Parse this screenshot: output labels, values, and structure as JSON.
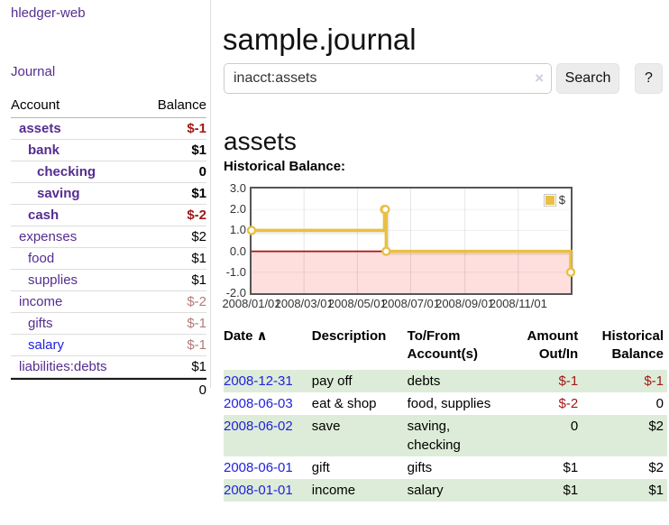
{
  "app": {
    "brand": "hledger-web",
    "nav_journal": "Journal"
  },
  "sidebar": {
    "headers": {
      "account": "Account",
      "balance": "Balance"
    },
    "accounts": [
      {
        "name": "assets",
        "balance": "$-1",
        "class": "neg"
      },
      {
        "name": "bank",
        "balance": "$1",
        "class": ""
      },
      {
        "name": "checking",
        "balance": "0",
        "class": ""
      },
      {
        "name": "saving",
        "balance": "$1",
        "class": ""
      },
      {
        "name": "cash",
        "balance": "$-2",
        "class": "neg"
      },
      {
        "name": "expenses",
        "balance": "$2",
        "class": ""
      },
      {
        "name": "food",
        "balance": "$1",
        "class": ""
      },
      {
        "name": "supplies",
        "balance": "$1",
        "class": ""
      },
      {
        "name": "income",
        "balance": "$-2",
        "class": "neg-muted"
      },
      {
        "name": "gifts",
        "balance": "$-1",
        "class": "neg-muted"
      },
      {
        "name": "salary",
        "balance": "$-1",
        "class": "neg-muted"
      },
      {
        "name": "liabilities:debts",
        "balance": "$1",
        "class": ""
      }
    ],
    "total": "0"
  },
  "header": {
    "title": "sample.journal"
  },
  "search": {
    "value": "inacct:assets",
    "clear_icon": "×",
    "button_label": "Search",
    "help_label": "?"
  },
  "account_page": {
    "heading": "assets",
    "chart_title": "Historical Balance:"
  },
  "chart_data": {
    "type": "line",
    "step": true,
    "title": "Historical Balance:",
    "ylim": [
      -2,
      3
    ],
    "x_range": [
      "2008-01-01",
      "2008-12-31"
    ],
    "y_ticks": [
      {
        "value": 3,
        "label": "3.0"
      },
      {
        "value": 2,
        "label": "2.0"
      },
      {
        "value": 1,
        "label": "1.0"
      },
      {
        "value": 0,
        "label": "0.0"
      },
      {
        "value": -1,
        "label": "-1.0"
      },
      {
        "value": -2,
        "label": "-2.0"
      }
    ],
    "x_ticks": [
      {
        "date": "2008-01-01",
        "label": "2008/01/01"
      },
      {
        "date": "2008-03-01",
        "label": "2008/03/01"
      },
      {
        "date": "2008-05-01",
        "label": "2008/05/01"
      },
      {
        "date": "2008-07-01",
        "label": "2008/07/01"
      },
      {
        "date": "2008-09-01",
        "label": "2008/09/01"
      },
      {
        "date": "2008-11-01",
        "label": "2008/11/01"
      }
    ],
    "series": [
      {
        "name": "$",
        "color": "#e9c044",
        "points": [
          {
            "date": "2008-01-01",
            "value": 1
          },
          {
            "date": "2008-06-01",
            "value": 2
          },
          {
            "date": "2008-06-02",
            "value": 2
          },
          {
            "date": "2008-06-03",
            "value": 0
          },
          {
            "date": "2008-12-31",
            "value": -1
          }
        ]
      }
    ],
    "negative_region_color": "#ffdede",
    "zero_line_color": "#aa1414",
    "grid": true,
    "legend_position": "top-right"
  },
  "register": {
    "headers": {
      "date": "Date",
      "sort_indicator": "∧",
      "description": "Description",
      "accounts": "To/From\nAccount(s)",
      "amount": "Amount\nOut/In",
      "balance": "Historical\nBalance"
    },
    "rows": [
      {
        "date": "2008-12-31",
        "description": "pay off",
        "accounts": "debts",
        "amount": "$-1",
        "amount_class": "neg",
        "balance": "$-1",
        "balance_class": "neg"
      },
      {
        "date": "2008-06-03",
        "description": "eat & shop",
        "accounts": "food, supplies",
        "amount": "$-2",
        "amount_class": "neg",
        "balance": "0",
        "balance_class": ""
      },
      {
        "date": "2008-06-02",
        "description": "save",
        "accounts": "saving, checking",
        "amount": "0",
        "amount_class": "",
        "balance": "$2",
        "balance_class": ""
      },
      {
        "date": "2008-06-01",
        "description": "gift",
        "accounts": "gifts",
        "amount": "$1",
        "amount_class": "",
        "balance": "$2",
        "balance_class": ""
      },
      {
        "date": "2008-01-01",
        "description": "income",
        "accounts": "salary",
        "amount": "$1",
        "amount_class": "",
        "balance": "$1",
        "balance_class": ""
      }
    ]
  }
}
